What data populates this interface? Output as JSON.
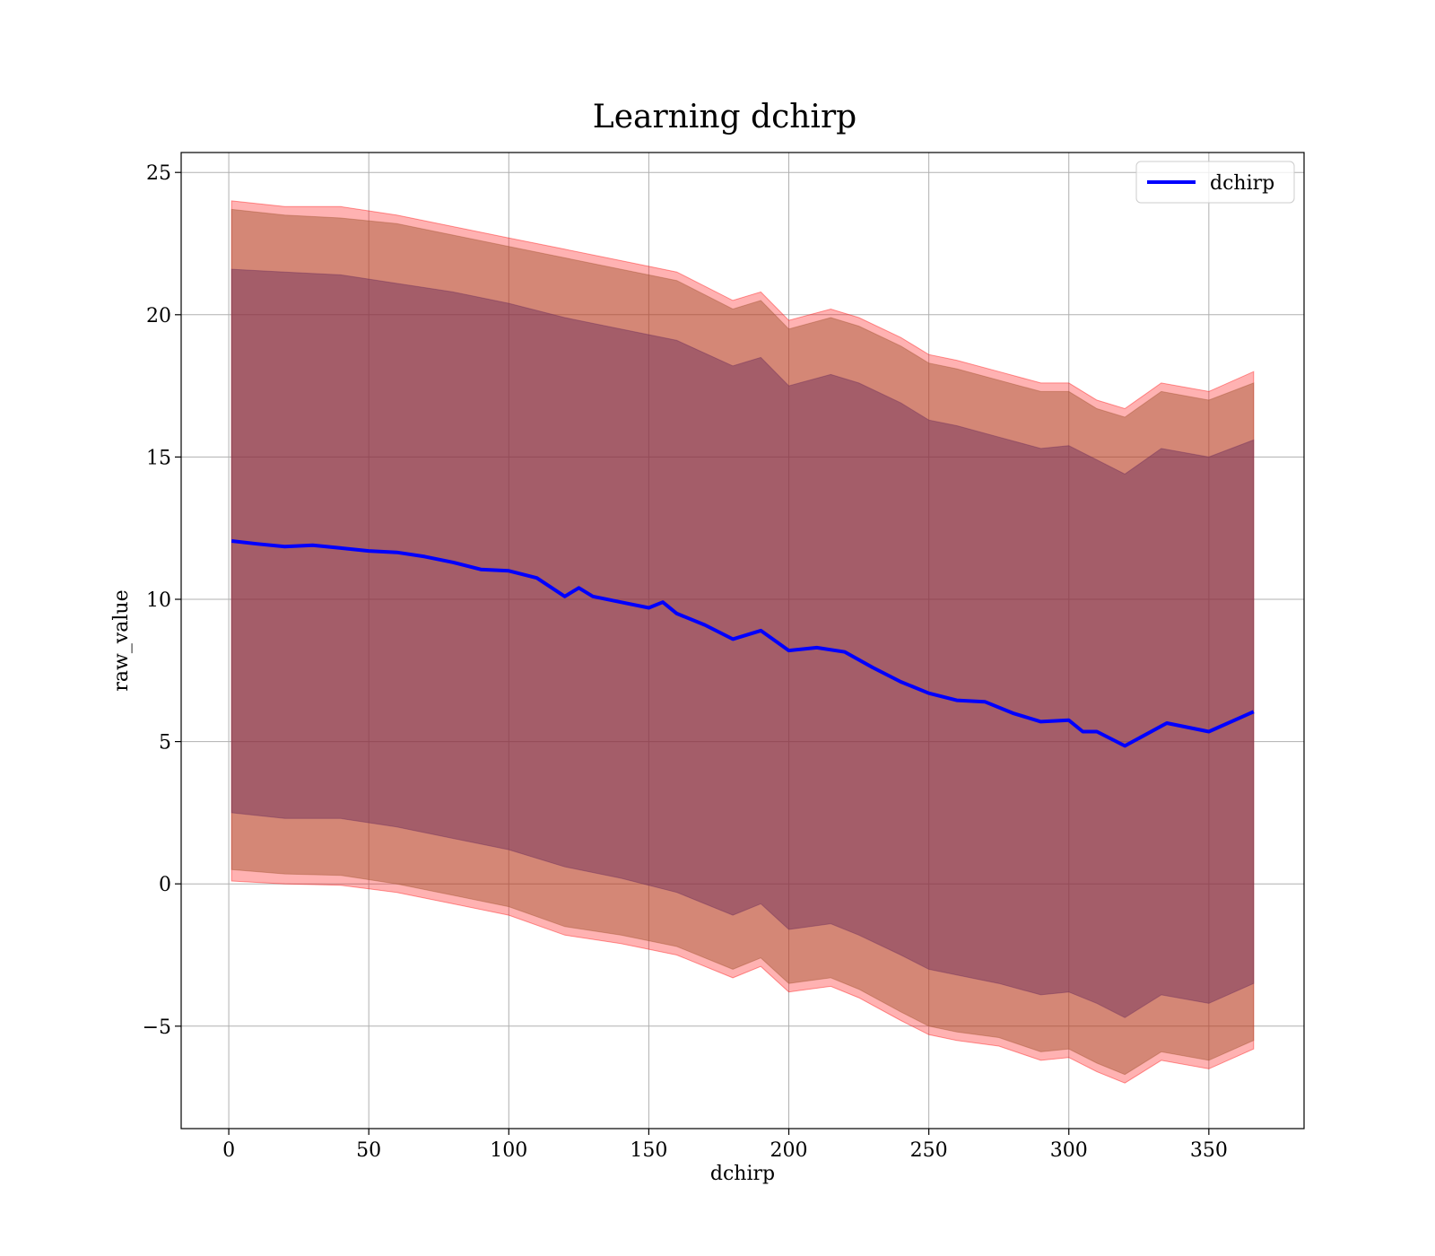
{
  "chart_data": {
    "type": "area",
    "title": "Learning dchirp",
    "xlabel": "dchirp",
    "ylabel": "raw_value",
    "xlim": [
      -17,
      384
    ],
    "ylim": [
      -8.6,
      25.7
    ],
    "xticks": [
      0,
      50,
      100,
      150,
      200,
      250,
      300,
      350
    ],
    "yticks": [
      25,
      20,
      15,
      10,
      5,
      0,
      -5
    ],
    "ytick_labels": [
      "25",
      "20",
      "15",
      "10",
      "5",
      "0",
      "−5"
    ],
    "grid": true,
    "legend_position": "upper right",
    "series": [
      {
        "name": "dchirp",
        "type": "line",
        "color": "#0000ff",
        "x": [
          1,
          10,
          20,
          30,
          40,
          50,
          60,
          70,
          80,
          90,
          100,
          110,
          120,
          125,
          130,
          140,
          150,
          155,
          160,
          170,
          180,
          190,
          200,
          210,
          220,
          230,
          240,
          250,
          260,
          270,
          280,
          290,
          300,
          305,
          310,
          320,
          335,
          350,
          366
        ],
        "y": [
          12.05,
          11.95,
          11.85,
          11.9,
          11.8,
          11.7,
          11.65,
          11.5,
          11.3,
          11.05,
          11.0,
          10.75,
          10.1,
          10.4,
          10.1,
          9.9,
          9.7,
          9.9,
          9.5,
          9.1,
          8.6,
          8.9,
          8.2,
          8.3,
          8.15,
          7.6,
          7.1,
          6.7,
          6.45,
          6.4,
          6.0,
          5.7,
          5.75,
          5.35,
          5.35,
          4.85,
          5.65,
          5.35,
          6.05
        ]
      }
    ],
    "bands": [
      {
        "name": "",
        "kind": "outer",
        "color": "#ff0000",
        "opacity": 0.3,
        "x": [
          1,
          20,
          40,
          60,
          80,
          100,
          120,
          140,
          160,
          180,
          190,
          200,
          215,
          225,
          240,
          250,
          260,
          275,
          290,
          300,
          310,
          320,
          333,
          350,
          366
        ],
        "upper": [
          24.0,
          23.8,
          23.8,
          23.5,
          23.1,
          22.7,
          22.3,
          21.9,
          21.5,
          20.5,
          20.8,
          19.8,
          20.2,
          19.9,
          19.2,
          18.6,
          18.4,
          18.0,
          17.6,
          17.6,
          17.0,
          16.7,
          17.6,
          17.3,
          18.0
        ],
        "lower": [
          0.1,
          0.0,
          -0.05,
          -0.3,
          -0.7,
          -1.1,
          -1.8,
          -2.1,
          -2.5,
          -3.3,
          -2.9,
          -3.8,
          -3.6,
          -4.0,
          -4.8,
          -5.3,
          -5.5,
          -5.7,
          -6.2,
          -6.1,
          -6.6,
          -7.0,
          -6.2,
          -6.5,
          -5.8
        ]
      },
      {
        "name": "",
        "kind": "middle",
        "color": "#a0522d",
        "opacity": 0.45,
        "x": [
          1,
          20,
          40,
          60,
          80,
          100,
          120,
          140,
          160,
          180,
          190,
          200,
          215,
          225,
          240,
          250,
          260,
          275,
          290,
          300,
          310,
          320,
          333,
          350,
          366
        ],
        "upper": [
          23.7,
          23.5,
          23.4,
          23.2,
          22.8,
          22.4,
          22.0,
          21.6,
          21.2,
          20.2,
          20.5,
          19.5,
          19.9,
          19.6,
          18.9,
          18.3,
          18.1,
          17.7,
          17.3,
          17.3,
          16.7,
          16.4,
          17.3,
          17.0,
          17.6
        ],
        "lower": [
          0.5,
          0.35,
          0.3,
          0.0,
          -0.4,
          -0.8,
          -1.5,
          -1.8,
          -2.2,
          -3.0,
          -2.6,
          -3.5,
          -3.3,
          -3.7,
          -4.5,
          -5.0,
          -5.2,
          -5.4,
          -5.9,
          -5.8,
          -6.3,
          -6.7,
          -5.9,
          -6.2,
          -5.5
        ]
      },
      {
        "name": "",
        "kind": "inner",
        "color": "#6a2a5a",
        "opacity": 0.45,
        "x": [
          1,
          20,
          40,
          60,
          80,
          100,
          120,
          140,
          160,
          180,
          190,
          200,
          215,
          225,
          240,
          250,
          260,
          275,
          290,
          300,
          310,
          320,
          333,
          350,
          366
        ],
        "upper": [
          21.6,
          21.5,
          21.4,
          21.1,
          20.8,
          20.4,
          19.9,
          19.5,
          19.1,
          18.2,
          18.5,
          17.5,
          17.9,
          17.6,
          16.9,
          16.3,
          16.1,
          15.7,
          15.3,
          15.4,
          14.9,
          14.4,
          15.3,
          15.0,
          15.6
        ],
        "lower": [
          2.5,
          2.3,
          2.3,
          2.0,
          1.6,
          1.2,
          0.6,
          0.2,
          -0.3,
          -1.1,
          -0.7,
          -1.6,
          -1.4,
          -1.8,
          -2.5,
          -3.0,
          -3.2,
          -3.5,
          -3.9,
          -3.8,
          -4.2,
          -4.7,
          -3.9,
          -4.2,
          -3.5
        ]
      }
    ]
  }
}
